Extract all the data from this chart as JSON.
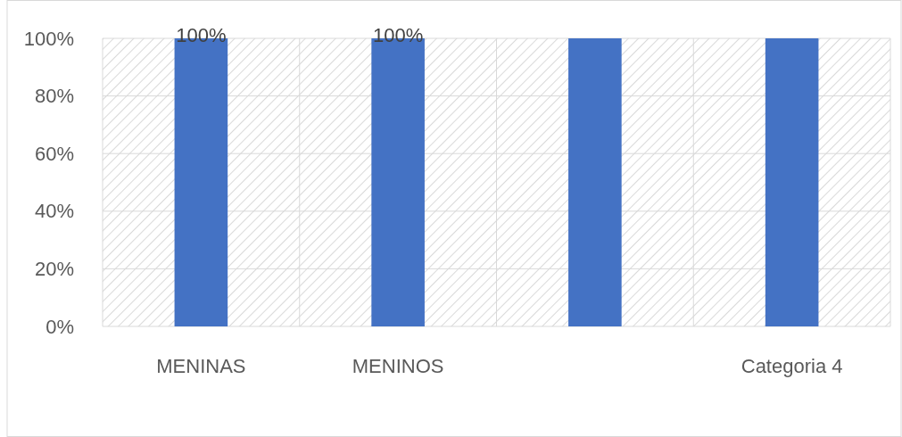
{
  "chart_data": {
    "type": "bar",
    "categories": [
      "MENINAS",
      "MENINOS",
      null,
      "Categoria 4"
    ],
    "values": [
      100,
      100,
      100,
      100
    ],
    "color": "#4472c4",
    "value_labels": [
      "100%",
      "100%",
      null,
      null
    ],
    "ylim": [
      0,
      100
    ],
    "yticks": [
      {
        "value": 0,
        "label": "0%"
      },
      {
        "value": 20,
        "label": "20%"
      },
      {
        "value": 40,
        "label": "40%"
      },
      {
        "value": 60,
        "label": "60%"
      },
      {
        "value": 80,
        "label": "80%"
      },
      {
        "value": 100,
        "label": "100%"
      }
    ],
    "grid": true
  }
}
